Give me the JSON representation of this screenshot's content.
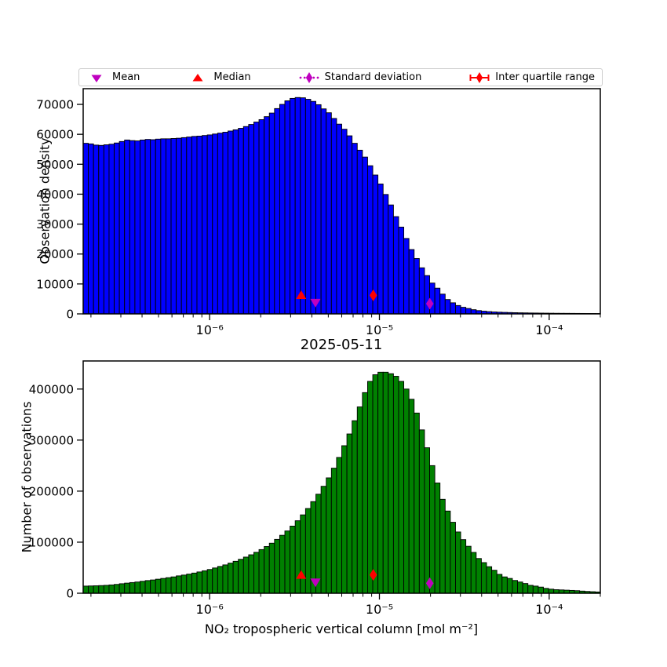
{
  "colors": {
    "hist_top": "#0000ff",
    "hist_bottom": "#008000",
    "bar_edge": "#000000",
    "axis": "#000000",
    "mean": "#bf00bf",
    "median": "#ff0000",
    "std": "#bf00bf",
    "iqr": "#ff0000",
    "legend_border": "#cccccc",
    "background": "#ffffff"
  },
  "legend": {
    "position": "top",
    "items": [
      {
        "label": "Mean",
        "marker": "triangle-down",
        "color": "#bf00bf"
      },
      {
        "label": "Median",
        "marker": "triangle-up",
        "color": "#ff0000"
      },
      {
        "label": "Standard deviation",
        "marker": "thin-diamond-dotted-line",
        "color": "#bf00bf"
      },
      {
        "label": "Inter quartile range",
        "marker": "thin-diamond-solid-errorbar",
        "color": "#ff0000"
      }
    ]
  },
  "chart_data": [
    {
      "type": "bar",
      "name": "observation-density-histogram",
      "title": "",
      "xlabel": "2025-05-11",
      "ylabel": "Observation density",
      "x_scale": "log",
      "grid": false,
      "color": "#0000ff",
      "xlim": [
        1.8e-07,
        0.0002
      ],
      "ylim": [
        0,
        75250
      ],
      "yticks": [
        0,
        10000,
        20000,
        30000,
        40000,
        50000,
        60000,
        70000
      ],
      "xticks": [
        1e-06,
        1e-05,
        0.0001
      ],
      "xtick_labels": [
        "10⁻⁶",
        "10⁻⁵",
        "10⁻⁴"
      ],
      "n_bins": 100,
      "values": [
        57000,
        56800,
        56400,
        56300,
        56500,
        56700,
        57100,
        57600,
        58100,
        57900,
        57800,
        58100,
        58300,
        58200,
        58400,
        58500,
        58500,
        58600,
        58700,
        58900,
        59100,
        59300,
        59400,
        59600,
        59800,
        60100,
        60400,
        60700,
        61100,
        61500,
        62000,
        62600,
        63300,
        64100,
        64900,
        65900,
        67100,
        68600,
        70000,
        71200,
        72000,
        72300,
        72200,
        71700,
        71000,
        69900,
        68500,
        67200,
        65300,
        63400,
        61700,
        59500,
        57000,
        54700,
        52400,
        49500,
        46400,
        43400,
        39900,
        36400,
        32500,
        29000,
        25200,
        21500,
        18500,
        15400,
        12800,
        10300,
        8600,
        6600,
        4800,
        3700,
        2800,
        2200,
        1800,
        1400,
        1100,
        900,
        750,
        640,
        560,
        500,
        450,
        400,
        360,
        330,
        300,
        280,
        260,
        240,
        220,
        200,
        190,
        180,
        170,
        160,
        150,
        140,
        130,
        120
      ],
      "markers": [
        {
          "name": "median",
          "label": "Median",
          "shape": "triangle-up",
          "color": "#ff0000",
          "x": 3.46e-06,
          "y": 6300
        },
        {
          "name": "mean",
          "label": "Mean",
          "shape": "triangle-down",
          "color": "#bf00bf",
          "x": 4.2e-06,
          "y": 3700
        },
        {
          "name": "iqr",
          "label": "Inter quartile range",
          "shape": "thin-diamond",
          "color": "#ff0000",
          "x": 9.2e-06,
          "y": 6200
        },
        {
          "name": "std",
          "label": "Standard deviation",
          "shape": "thin-diamond",
          "color": "#bf00bf",
          "x": 1.98e-05,
          "y": 3400
        }
      ]
    },
    {
      "type": "bar",
      "name": "number-of-observations-histogram",
      "title": "",
      "xlabel": "NO₂ tropospheric vertical column [mol m⁻²]",
      "ylabel": "Number of observations",
      "x_scale": "log",
      "grid": false,
      "color": "#008000",
      "xlim": [
        1.8e-07,
        0.0002
      ],
      "ylim": [
        0,
        455000
      ],
      "yticks": [
        0,
        100000,
        200000,
        300000,
        400000
      ],
      "xticks": [
        1e-06,
        1e-05,
        0.0001
      ],
      "xtick_labels": [
        "10⁻⁶",
        "10⁻⁵",
        "10⁻⁴"
      ],
      "n_bins": 100,
      "values": [
        14000,
        14300,
        14600,
        15000,
        15500,
        16300,
        17300,
        18600,
        19800,
        20900,
        22000,
        23400,
        24800,
        26000,
        27500,
        29000,
        30500,
        32000,
        34000,
        35600,
        37500,
        39500,
        41700,
        44000,
        46500,
        49500,
        52500,
        55500,
        59000,
        62500,
        66500,
        70800,
        75300,
        80200,
        85500,
        91500,
        98000,
        105500,
        113500,
        122000,
        131500,
        142000,
        153500,
        166000,
        179500,
        194000,
        209500,
        226000,
        245000,
        266000,
        289000,
        312000,
        338000,
        365000,
        393000,
        415000,
        428000,
        433000,
        433000,
        430000,
        425000,
        415000,
        400000,
        380000,
        353000,
        320000,
        285000,
        250000,
        216000,
        184000,
        161000,
        139000,
        120000,
        105000,
        92000,
        80000,
        68000,
        60000,
        52000,
        45000,
        37000,
        32000,
        29000,
        25000,
        22000,
        19000,
        15500,
        14000,
        12000,
        9500,
        8000,
        7000,
        6500,
        6000,
        5500,
        5000,
        4200,
        3500,
        3000,
        2500
      ],
      "markers": [
        {
          "name": "median",
          "label": "Median",
          "shape": "triangle-up",
          "color": "#ff0000",
          "x": 3.46e-06,
          "y": 36000
        },
        {
          "name": "mean",
          "label": "Mean",
          "shape": "triangle-down",
          "color": "#bf00bf",
          "x": 4.2e-06,
          "y": 21000
        },
        {
          "name": "iqr",
          "label": "Inter quartile range",
          "shape": "thin-diamond",
          "color": "#ff0000",
          "x": 9.2e-06,
          "y": 36000
        },
        {
          "name": "std",
          "label": "Standard deviation",
          "shape": "thin-diamond",
          "color": "#bf00bf",
          "x": 1.98e-05,
          "y": 19500
        }
      ]
    }
  ]
}
